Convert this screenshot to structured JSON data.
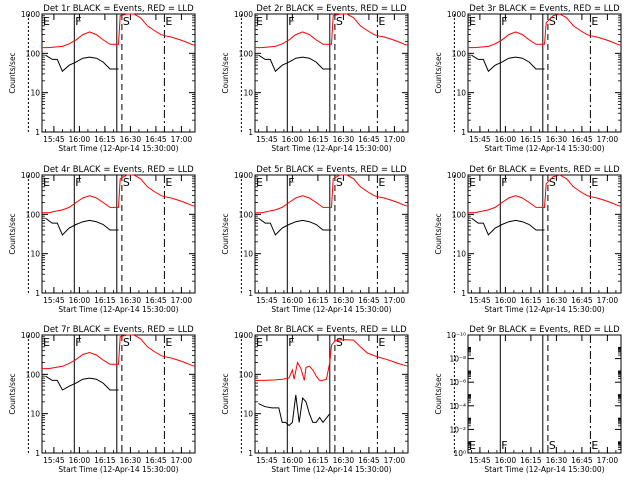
{
  "figure": {
    "ylabel": "Counts/sec",
    "xlabel": "Start Time (12-Apr-14 15:30:00)",
    "x_ticks": [
      "15:45",
      "16:00",
      "16:15",
      "16:30",
      "16:45",
      "17:00"
    ],
    "markers": [
      "E",
      "F",
      "S",
      "E"
    ]
  },
  "colors": {
    "events": "#000000",
    "lld": "#ff0000",
    "axis": "#000000"
  },
  "chart_data": [
    {
      "type": "line",
      "title": "Det 1r BLACK = Events, RED = LLD",
      "y_scale": "log",
      "ylim": [
        1,
        1000
      ],
      "y_ticks": [
        "1",
        "10",
        "100",
        "1000"
      ],
      "xlim_min": [
        8,
        98
      ],
      "marker_min": [
        0,
        27,
        55,
        80
      ],
      "series": [
        {
          "name": "LLD",
          "x": [
            8,
            12,
            16,
            20,
            24,
            28,
            32,
            36,
            40,
            44,
            48,
            53,
            54,
            58,
            62,
            66,
            70,
            74,
            78,
            80,
            84,
            88,
            92,
            96,
            98
          ],
          "y": [
            140,
            140,
            145,
            150,
            175,
            220,
            300,
            350,
            300,
            220,
            170,
            170,
            900,
            1000,
            1000,
            800,
            500,
            380,
            300,
            280,
            260,
            230,
            200,
            170,
            160
          ]
        },
        {
          "name": "Events",
          "x": [
            10,
            14,
            17,
            20,
            24,
            28,
            32,
            36,
            40,
            44,
            48,
            53
          ],
          "y": [
            90,
            70,
            70,
            35,
            50,
            60,
            75,
            80,
            75,
            60,
            40,
            40
          ]
        }
      ]
    },
    {
      "type": "line",
      "title": "Det 2r BLACK = Events, RED = LLD",
      "y_scale": "log",
      "ylim": [
        1,
        1000
      ],
      "y_ticks": [
        "1",
        "10",
        "100",
        "1000"
      ],
      "xlim_min": [
        8,
        98
      ],
      "marker_min": [
        0,
        27,
        55,
        80
      ],
      "series": [
        {
          "name": "LLD",
          "x": [
            8,
            12,
            16,
            20,
            24,
            28,
            32,
            36,
            40,
            44,
            48,
            53,
            54,
            58,
            62,
            66,
            70,
            74,
            78,
            80,
            84,
            88,
            92,
            96,
            98
          ],
          "y": [
            140,
            140,
            145,
            150,
            175,
            220,
            300,
            350,
            300,
            220,
            170,
            170,
            900,
            1000,
            1000,
            800,
            500,
            380,
            300,
            280,
            260,
            230,
            200,
            170,
            160
          ]
        },
        {
          "name": "Events",
          "x": [
            10,
            14,
            17,
            20,
            24,
            28,
            32,
            36,
            40,
            44,
            48,
            53
          ],
          "y": [
            90,
            70,
            70,
            35,
            50,
            60,
            75,
            80,
            75,
            60,
            40,
            40
          ]
        }
      ]
    },
    {
      "type": "line",
      "title": "Det 3r BLACK = Events, RED = LLD",
      "y_scale": "log",
      "ylim": [
        1,
        1000
      ],
      "y_ticks": [
        "1",
        "10",
        "100",
        "1000"
      ],
      "xlim_min": [
        8,
        98
      ],
      "marker_min": [
        0,
        27,
        55,
        80
      ],
      "series": [
        {
          "name": "LLD",
          "x": [
            8,
            12,
            16,
            20,
            24,
            28,
            32,
            36,
            40,
            44,
            48,
            53,
            54,
            58,
            62,
            66,
            70,
            74,
            78,
            80,
            84,
            88,
            92,
            96,
            98
          ],
          "y": [
            140,
            140,
            145,
            150,
            175,
            220,
            300,
            350,
            300,
            220,
            170,
            170,
            600,
            900,
            1000,
            800,
            500,
            380,
            300,
            280,
            260,
            230,
            200,
            170,
            160
          ]
        },
        {
          "name": "Events",
          "x": [
            10,
            14,
            17,
            20,
            24,
            28,
            32,
            36,
            40,
            44,
            48,
            53
          ],
          "y": [
            90,
            70,
            70,
            35,
            50,
            60,
            75,
            80,
            75,
            60,
            40,
            40
          ]
        }
      ]
    },
    {
      "type": "line",
      "title": "Det 4r BLACK = Events, RED = LLD",
      "y_scale": "log",
      "ylim": [
        1,
        1000
      ],
      "y_ticks": [
        "1",
        "10",
        "100",
        "1000"
      ],
      "xlim_min": [
        8,
        98
      ],
      "marker_min": [
        0,
        27,
        55,
        80
      ],
      "series": [
        {
          "name": "LLD",
          "x": [
            8,
            12,
            16,
            20,
            24,
            28,
            32,
            36,
            40,
            44,
            48,
            53,
            54,
            58,
            62,
            66,
            70,
            74,
            78,
            80,
            84,
            88,
            92,
            96,
            98
          ],
          "y": [
            110,
            110,
            120,
            130,
            150,
            200,
            260,
            300,
            260,
            200,
            150,
            150,
            800,
            1000,
            1000,
            800,
            500,
            380,
            300,
            280,
            260,
            230,
            200,
            170,
            160
          ]
        },
        {
          "name": "Events",
          "x": [
            10,
            14,
            17,
            20,
            24,
            28,
            32,
            36,
            40,
            44,
            48,
            53
          ],
          "y": [
            80,
            60,
            60,
            30,
            45,
            55,
            65,
            70,
            65,
            55,
            40,
            40
          ]
        }
      ]
    },
    {
      "type": "line",
      "title": "Det 5r BLACK = Events, RED = LLD",
      "y_scale": "log",
      "ylim": [
        1,
        1000
      ],
      "y_ticks": [
        "1",
        "10",
        "100",
        "1000"
      ],
      "xlim_min": [
        8,
        98
      ],
      "marker_min": [
        0,
        27,
        55,
        80
      ],
      "series": [
        {
          "name": "LLD",
          "x": [
            8,
            12,
            16,
            20,
            24,
            28,
            32,
            36,
            40,
            44,
            48,
            53,
            54,
            58,
            62,
            66,
            70,
            74,
            78,
            80,
            84,
            88,
            92,
            96,
            98
          ],
          "y": [
            110,
            110,
            120,
            130,
            150,
            200,
            260,
            300,
            260,
            200,
            150,
            150,
            800,
            1000,
            1000,
            800,
            500,
            380,
            300,
            280,
            260,
            230,
            200,
            170,
            160
          ]
        },
        {
          "name": "Events",
          "x": [
            10,
            14,
            17,
            20,
            24,
            28,
            32,
            36,
            40,
            44,
            48,
            53
          ],
          "y": [
            80,
            60,
            60,
            30,
            45,
            55,
            65,
            70,
            65,
            55,
            40,
            40
          ]
        }
      ]
    },
    {
      "type": "line",
      "title": "Det 6r BLACK = Events, RED = LLD",
      "y_scale": "log",
      "ylim": [
        1,
        1000
      ],
      "y_ticks": [
        "1",
        "10",
        "100",
        "1000"
      ],
      "xlim_min": [
        8,
        98
      ],
      "marker_min": [
        0,
        27,
        55,
        80
      ],
      "series": [
        {
          "name": "LLD",
          "x": [
            8,
            12,
            16,
            20,
            24,
            28,
            32,
            36,
            40,
            44,
            48,
            53,
            54,
            58,
            62,
            66,
            70,
            74,
            78,
            80,
            84,
            88,
            92,
            96,
            98
          ],
          "y": [
            110,
            110,
            120,
            130,
            150,
            200,
            260,
            300,
            260,
            200,
            150,
            150,
            600,
            900,
            1000,
            800,
            500,
            380,
            300,
            280,
            260,
            230,
            200,
            170,
            160
          ]
        },
        {
          "name": "Events",
          "x": [
            10,
            14,
            17,
            20,
            24,
            28,
            32,
            36,
            40,
            44,
            48,
            53
          ],
          "y": [
            80,
            60,
            60,
            30,
            45,
            55,
            65,
            70,
            65,
            55,
            40,
            40
          ]
        }
      ]
    },
    {
      "type": "line",
      "title": "Det 7r BLACK = Events, RED = LLD",
      "y_scale": "log",
      "ylim": [
        1,
        1000
      ],
      "y_ticks": [
        "1",
        "10",
        "100",
        "1000"
      ],
      "xlim_min": [
        8,
        98
      ],
      "marker_min": [
        0,
        27,
        55,
        80
      ],
      "series": [
        {
          "name": "LLD",
          "x": [
            8,
            12,
            16,
            20,
            24,
            28,
            32,
            36,
            40,
            44,
            48,
            53,
            54,
            58,
            62,
            66,
            70,
            74,
            78,
            80,
            84,
            88,
            92,
            96,
            98
          ],
          "y": [
            140,
            140,
            150,
            160,
            190,
            240,
            320,
            360,
            310,
            230,
            180,
            180,
            900,
            1000,
            1000,
            800,
            500,
            380,
            300,
            280,
            260,
            230,
            200,
            170,
            160
          ]
        },
        {
          "name": "Events",
          "x": [
            10,
            14,
            17,
            20,
            24,
            28,
            32,
            36,
            40,
            44,
            48,
            53
          ],
          "y": [
            90,
            70,
            70,
            40,
            50,
            60,
            75,
            80,
            75,
            60,
            40,
            40
          ]
        }
      ]
    },
    {
      "type": "line",
      "title": "Det 8r BLACK = Events, RED = LLD",
      "y_scale": "log",
      "ylim": [
        1,
        1000
      ],
      "y_ticks": [
        "1",
        "10",
        "100",
        "1000"
      ],
      "xlim_min": [
        8,
        98
      ],
      "marker_min": [
        0,
        27,
        55,
        80
      ],
      "series": [
        {
          "name": "LLD",
          "x": [
            8,
            14,
            20,
            24,
            28,
            30,
            31,
            33,
            35,
            37,
            38,
            40,
            42,
            44,
            46,
            48,
            50,
            52,
            53,
            55,
            58,
            62,
            66,
            70,
            74,
            78,
            80,
            84,
            88,
            92,
            96,
            98
          ],
          "y": [
            70,
            70,
            72,
            75,
            80,
            130,
            75,
            200,
            140,
            70,
            150,
            160,
            130,
            90,
            70,
            70,
            75,
            200,
            550,
            700,
            750,
            760,
            740,
            500,
            350,
            300,
            280,
            250,
            220,
            190,
            170,
            160
          ]
        },
        {
          "name": "Events",
          "x": [
            10,
            14,
            18,
            22,
            24,
            26,
            28,
            30,
            32,
            34,
            36,
            38,
            40,
            42,
            44,
            46,
            48,
            52
          ],
          "y": [
            18,
            15,
            14,
            14,
            6,
            6,
            5,
            6,
            30,
            6,
            25,
            20,
            10,
            6,
            6,
            8,
            6,
            10
          ]
        }
      ]
    },
    {
      "type": "line",
      "title": "Det 9r BLACK = Events, RED = LLD",
      "y_scale": "log",
      "ylim": [
        1,
        1e-10
      ],
      "y_ticks": [
        "10⁰",
        "10⁻²",
        "10⁻⁴",
        "10⁻⁶",
        "10⁻⁸",
        "10⁻¹⁰"
      ],
      "xlim_min": [
        8,
        98
      ],
      "marker_min": [
        0,
        27,
        55,
        80
      ],
      "series": []
    }
  ]
}
